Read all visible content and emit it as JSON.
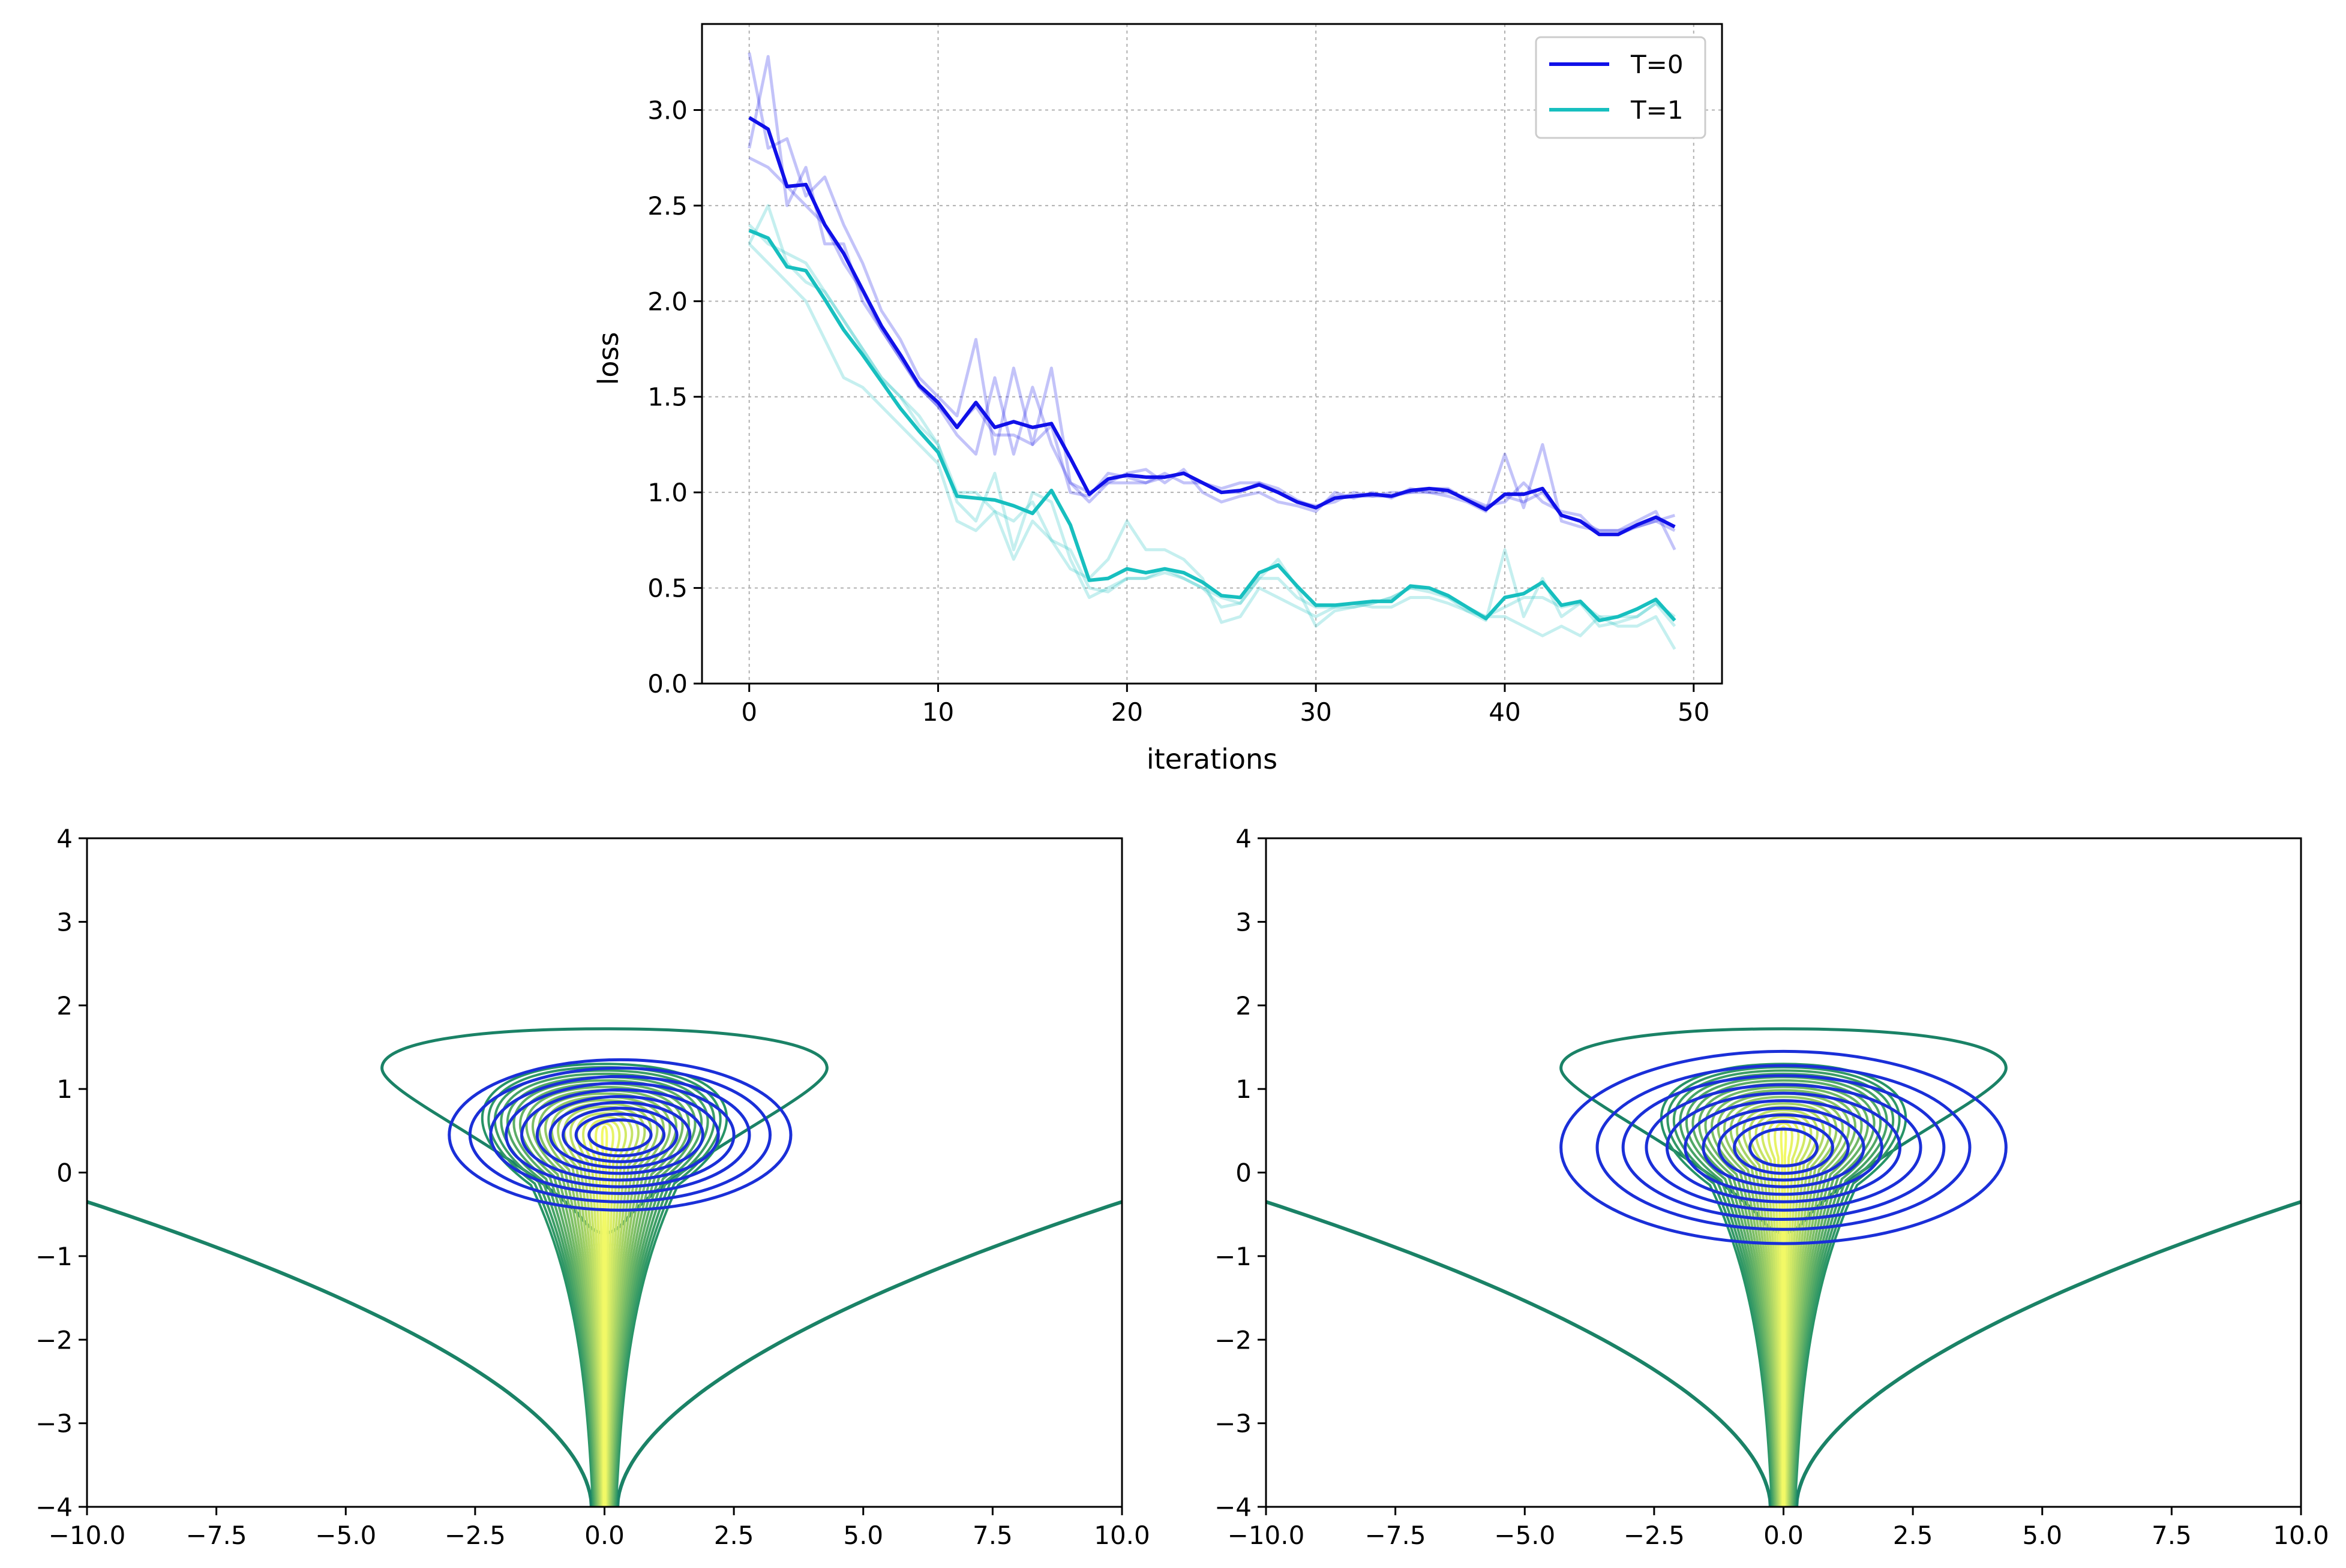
{
  "chart_data": [
    {
      "type": "line",
      "title": "",
      "xlabel": "iterations",
      "ylabel": "loss",
      "xlim": [
        -2.5,
        51.5
      ],
      "ylim": [
        0,
        3.45
      ],
      "xticks": [
        0,
        10,
        20,
        30,
        40,
        50
      ],
      "yticks": [
        "0.0",
        "0.5",
        "1.0",
        "1.5",
        "2.0",
        "2.5",
        "3.0"
      ],
      "grid": true,
      "legend_position": "top-right",
      "colors": {
        "T0": "#1010e8",
        "T1": "#17bfbf"
      },
      "x": [
        0,
        1,
        2,
        3,
        4,
        5,
        6,
        7,
        8,
        9,
        10,
        11,
        12,
        13,
        14,
        15,
        16,
        17,
        18,
        19,
        20,
        21,
        22,
        23,
        24,
        25,
        26,
        27,
        28,
        29,
        30,
        31,
        32,
        33,
        34,
        35,
        36,
        37,
        38,
        39,
        40,
        41,
        42,
        43,
        44,
        45,
        46,
        47,
        48,
        49
      ],
      "series": [
        {
          "name": "T=0",
          "values": [
            2.96,
            2.9,
            2.6,
            2.61,
            2.4,
            2.25,
            2.06,
            1.87,
            1.72,
            1.56,
            1.47,
            1.34,
            1.47,
            1.34,
            1.37,
            1.34,
            1.36,
            1.18,
            0.99,
            1.07,
            1.09,
            1.08,
            1.08,
            1.1,
            1.05,
            1.0,
            1.01,
            1.04,
            1.0,
            0.95,
            0.92,
            0.97,
            0.98,
            0.99,
            0.98,
            1.01,
            1.02,
            1.01,
            0.96,
            0.91,
            0.99,
            0.99,
            1.02,
            0.88,
            0.85,
            0.78,
            0.78,
            0.83,
            0.87,
            0.82
          ]
        },
        {
          "name": "T=1",
          "values": [
            2.37,
            2.33,
            2.18,
            2.16,
            2.01,
            1.85,
            1.72,
            1.58,
            1.44,
            1.32,
            1.21,
            0.98,
            0.97,
            0.96,
            0.93,
            0.89,
            1.01,
            0.83,
            0.54,
            0.55,
            0.6,
            0.58,
            0.6,
            0.58,
            0.53,
            0.46,
            0.45,
            0.58,
            0.62,
            0.51,
            0.41,
            0.41,
            0.42,
            0.43,
            0.43,
            0.51,
            0.5,
            0.46,
            0.4,
            0.34,
            0.45,
            0.47,
            0.53,
            0.41,
            0.43,
            0.33,
            0.35,
            0.39,
            0.44,
            0.33
          ]
        },
        {
          "name": "T=0 run",
          "faint": true,
          "values": [
            3.3,
            2.8,
            2.85,
            2.55,
            2.65,
            2.4,
            2.2,
            1.95,
            1.8,
            1.6,
            1.5,
            1.4,
            1.8,
            1.2,
            1.65,
            1.25,
            1.65,
            1.05,
            0.95,
            1.05,
            1.1,
            1.12,
            1.05,
            1.12,
            1.0,
            0.95,
            0.98,
            1.0,
            0.95,
            0.93,
            0.9,
            1.0,
            0.97,
            1.0,
            0.97,
            1.02,
            1.0,
            0.98,
            0.95,
            0.9,
            1.2,
            0.92,
            1.25,
            0.85,
            0.82,
            0.8,
            0.8,
            0.85,
            0.9,
            0.7
          ]
        },
        {
          "name": "T=0 run",
          "faint": true,
          "values": [
            2.8,
            3.28,
            2.5,
            2.7,
            2.3,
            2.3,
            2.0,
            1.85,
            1.7,
            1.55,
            1.45,
            1.3,
            1.2,
            1.6,
            1.2,
            1.55,
            1.25,
            1.05,
            1.0,
            1.05,
            1.05,
            1.05,
            1.1,
            1.05,
            1.05,
            1.02,
            1.05,
            1.05,
            1.0,
            0.95,
            0.93,
            0.95,
            1.0,
            0.98,
            0.98,
            1.0,
            1.0,
            1.0,
            0.97,
            0.93,
            0.95,
            1.05,
            0.95,
            0.9,
            0.88,
            0.78,
            0.78,
            0.82,
            0.85,
            0.88
          ]
        },
        {
          "name": "T=0 run",
          "faint": true,
          "values": [
            2.75,
            2.7,
            2.6,
            2.5,
            2.4,
            2.2,
            2.05,
            1.85,
            1.7,
            1.55,
            1.45,
            1.35,
            1.45,
            1.3,
            1.3,
            1.25,
            1.35,
            1.0,
            0.98,
            1.1,
            1.08,
            1.05,
            1.08,
            1.1,
            1.05,
            1.0,
            1.0,
            1.05,
            1.02,
            0.96,
            0.92,
            0.98,
            0.98,
            0.98,
            1.0,
            1.0,
            1.02,
            1.02,
            0.96,
            0.92,
            0.98,
            0.95,
            1.0,
            0.88,
            0.85,
            0.8,
            0.8,
            0.82,
            0.85,
            0.8
          ]
        },
        {
          "name": "T=1 run",
          "faint": true,
          "values": [
            2.3,
            2.5,
            2.2,
            2.1,
            2.05,
            1.9,
            1.75,
            1.6,
            1.5,
            1.35,
            1.25,
            0.95,
            0.85,
            1.1,
            0.7,
            1.0,
            0.95,
            0.65,
            0.45,
            0.5,
            0.55,
            0.55,
            0.6,
            0.55,
            0.5,
            0.4,
            0.42,
            0.55,
            0.55,
            0.45,
            0.4,
            0.4,
            0.4,
            0.42,
            0.45,
            0.5,
            0.48,
            0.45,
            0.38,
            0.33,
            0.7,
            0.35,
            0.55,
            0.35,
            0.42,
            0.3,
            0.32,
            0.35,
            0.42,
            0.3
          ]
        },
        {
          "name": "T=1 run",
          "faint": true,
          "values": [
            2.3,
            2.2,
            2.1,
            2.0,
            1.8,
            1.6,
            1.55,
            1.45,
            1.35,
            1.25,
            1.15,
            0.85,
            0.8,
            0.9,
            0.65,
            0.85,
            0.75,
            0.6,
            0.55,
            0.65,
            0.85,
            0.7,
            0.7,
            0.65,
            0.55,
            0.32,
            0.35,
            0.5,
            0.45,
            0.4,
            0.35,
            0.4,
            0.42,
            0.4,
            0.4,
            0.45,
            0.45,
            0.42,
            0.38,
            0.35,
            0.35,
            0.3,
            0.25,
            0.3,
            0.25,
            0.35,
            0.3,
            0.3,
            0.35,
            0.18
          ]
        },
        {
          "name": "T=1 run",
          "faint": true,
          "values": [
            2.4,
            2.3,
            2.25,
            2.2,
            2.05,
            1.9,
            1.75,
            1.6,
            1.5,
            1.4,
            1.25,
            1.0,
            1.0,
            0.9,
            0.85,
            0.95,
            0.75,
            0.7,
            0.5,
            0.48,
            0.55,
            0.55,
            0.58,
            0.55,
            0.5,
            0.45,
            0.42,
            0.55,
            0.65,
            0.5,
            0.3,
            0.38,
            0.4,
            0.42,
            0.45,
            0.5,
            0.5,
            0.45,
            0.4,
            0.35,
            0.4,
            0.45,
            0.45,
            0.4,
            0.42,
            0.35,
            0.35,
            0.35,
            0.42,
            0.35
          ]
        }
      ]
    },
    {
      "type": "contour",
      "xlim": [
        -10,
        10
      ],
      "ylim": [
        -4,
        4
      ],
      "xticks": [
        "−10.0",
        "−7.5",
        "−5.0",
        "−2.5",
        "0.0",
        "2.5",
        "5.0",
        "7.5",
        "10.0"
      ],
      "yticks": [
        "−4",
        "−3",
        "−2",
        "−1",
        "0",
        "1",
        "2",
        "3",
        "4"
      ],
      "target_colormap": "summer",
      "approx_color": "#1a2fd8",
      "approx_center": [
        0.3,
        0.45
      ],
      "approx_radii": [
        [
          3.3,
          0.9
        ],
        [
          2.9,
          0.8
        ],
        [
          2.5,
          0.7
        ],
        [
          2.2,
          0.62
        ],
        [
          1.9,
          0.54
        ],
        [
          1.6,
          0.46
        ],
        [
          1.35,
          0.39
        ],
        [
          1.1,
          0.32
        ],
        [
          0.85,
          0.25
        ],
        [
          0.6,
          0.18
        ]
      ]
    },
    {
      "type": "contour",
      "xlim": [
        -10,
        10
      ],
      "ylim": [
        -4,
        4
      ],
      "xticks": [
        "−10.0",
        "−7.5",
        "−5.0",
        "−2.5",
        "0.0",
        "2.5",
        "5.0",
        "7.5",
        "10.0"
      ],
      "yticks": [
        "−4",
        "−3",
        "−2",
        "−1",
        "0",
        "1",
        "2",
        "3",
        "4"
      ],
      "target_colormap": "summer",
      "approx_color": "#1a2fd8",
      "approx_center": [
        0.0,
        0.3
      ],
      "approx_radii": [
        [
          4.3,
          1.15
        ],
        [
          3.6,
          0.98
        ],
        [
          3.1,
          0.86
        ],
        [
          2.65,
          0.75
        ],
        [
          2.25,
          0.65
        ],
        [
          1.9,
          0.56
        ],
        [
          1.55,
          0.47
        ],
        [
          1.25,
          0.39
        ],
        [
          0.95,
          0.31
        ],
        [
          0.65,
          0.22
        ]
      ]
    }
  ]
}
